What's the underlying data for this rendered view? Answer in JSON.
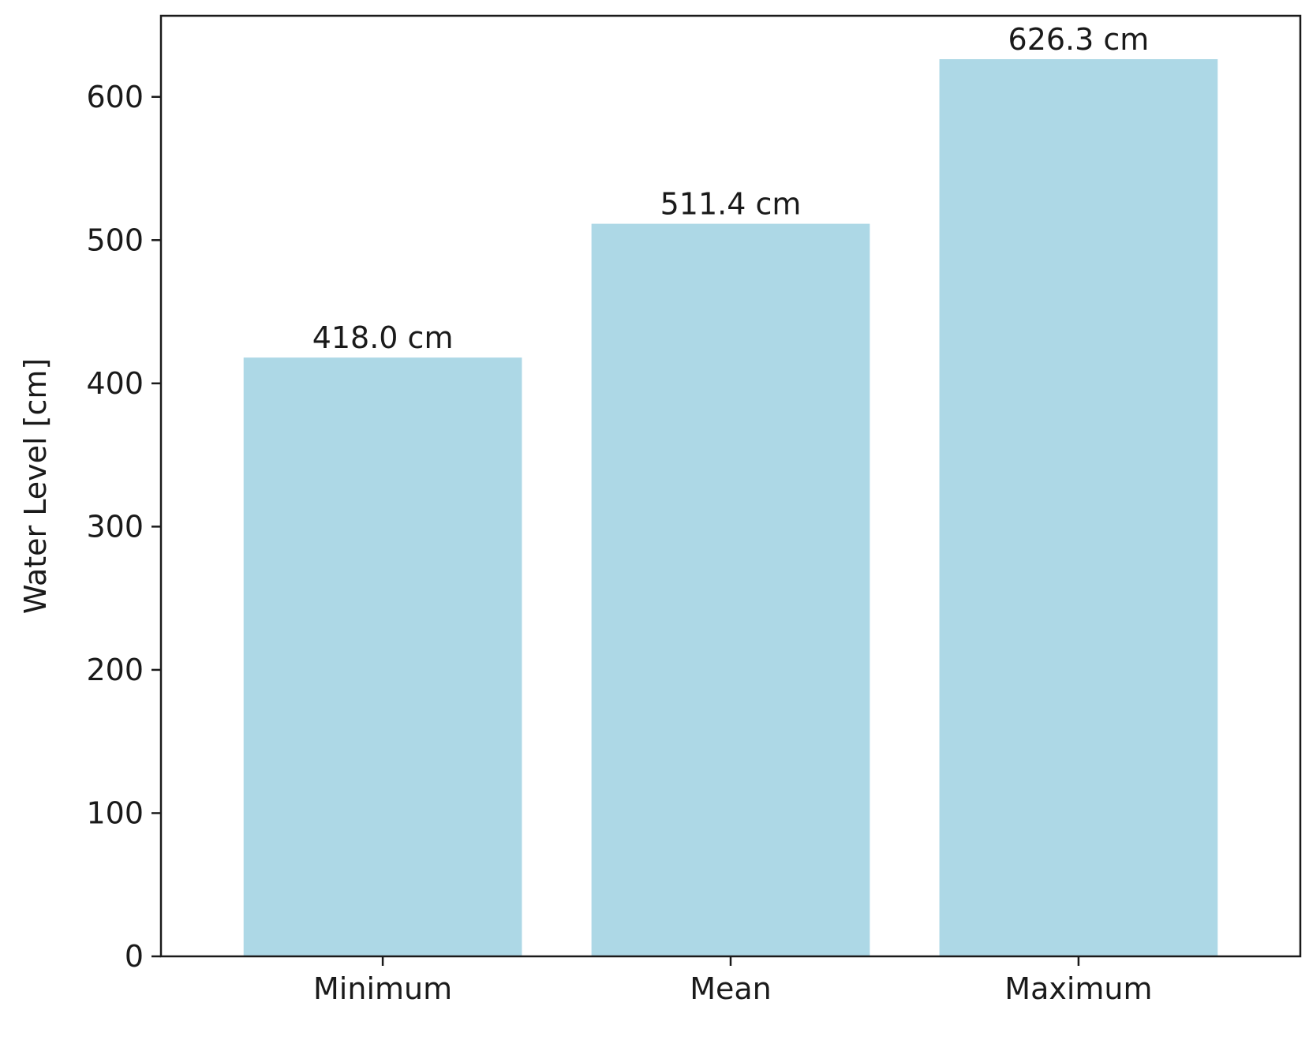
{
  "chart_data": {
    "type": "bar",
    "categories": [
      "Minimum",
      "Mean",
      "Maximum"
    ],
    "values": [
      418.0,
      511.4,
      626.3
    ],
    "data_labels": [
      "418.0 cm",
      "511.4 cm",
      "626.3 cm"
    ],
    "title": "",
    "xlabel": "",
    "ylabel": "Water Level [cm]",
    "ylim": [
      0,
      656.6
    ],
    "yticks": [
      0,
      100,
      200,
      300,
      400,
      500,
      600
    ],
    "ytick_labels": [
      "0",
      "100",
      "200",
      "300",
      "400",
      "500",
      "600"
    ],
    "grid": false,
    "legend": "none",
    "bar_color": "#add8e6"
  }
}
